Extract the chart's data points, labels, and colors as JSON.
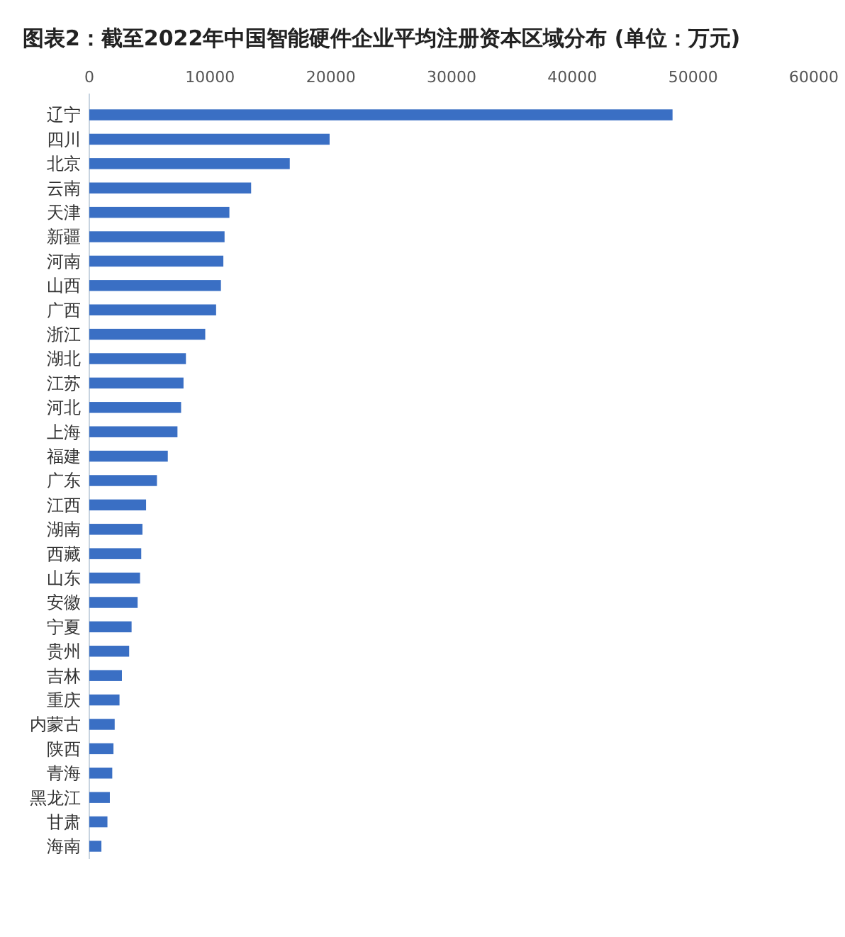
{
  "chart_data": {
    "type": "bar",
    "orientation": "horizontal",
    "title": "图表2：截至2022年中国智能硬件企业平均注册资本区域分布 (单位：万元)",
    "categories": [
      "辽宁",
      "四川",
      "北京",
      "云南",
      "天津",
      "新疆",
      "河南",
      "山西",
      "广西",
      "浙江",
      "湖北",
      "江苏",
      "河北",
      "上海",
      "福建",
      "广东",
      "江西",
      "湖南",
      "西藏",
      "山东",
      "安徽",
      "宁夏",
      "贵州",
      "吉林",
      "重庆",
      "内蒙古",
      "陕西",
      "青海",
      "黑龙江",
      "甘肃",
      "海南"
    ],
    "values": [
      48300,
      19900,
      16600,
      13400,
      11600,
      11200,
      11100,
      10900,
      10500,
      9600,
      8000,
      7800,
      7600,
      7300,
      6500,
      5600,
      4700,
      4400,
      4300,
      4200,
      4000,
      3500,
      3300,
      2700,
      2500,
      2100,
      2000,
      1900,
      1700,
      1500,
      1000
    ],
    "color": "#3a6fc4",
    "xlim": [
      0,
      60000
    ],
    "xticks": [
      0,
      10000,
      20000,
      30000,
      40000,
      50000,
      60000
    ],
    "grid": false
  }
}
